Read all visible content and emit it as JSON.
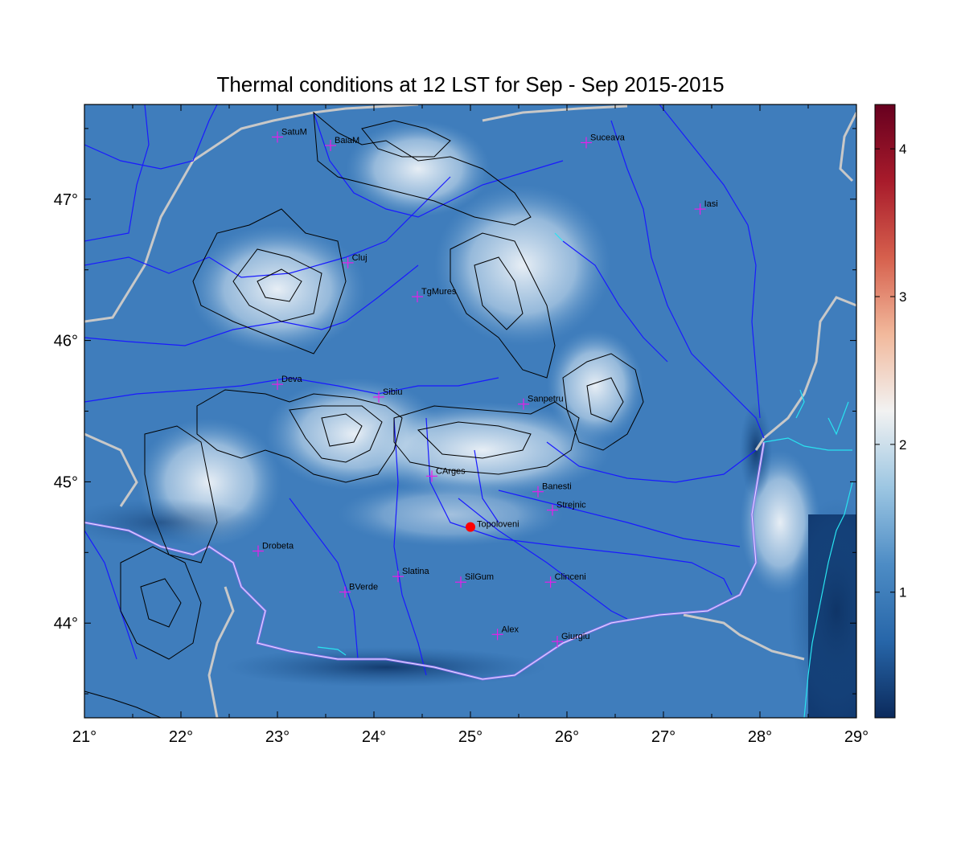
{
  "title": "Thermal conditions at 12 LST for Sep - Sep  2015-2015",
  "axes": {
    "x_ticks": [
      "21°",
      "22°",
      "23°",
      "24°",
      "25°",
      "26°",
      "27°",
      "28°",
      "29°"
    ],
    "y_ticks": [
      "47°",
      "46°",
      "45°",
      "44°"
    ],
    "lon_range": [
      21,
      29
    ],
    "lat_range": [
      43.33,
      47.67
    ]
  },
  "colorbar": {
    "ticks": [
      "1",
      "2",
      "3",
      "4"
    ],
    "range": [
      0.15,
      4.3
    ],
    "colors": [
      "#0b2a5c",
      "#2766a9",
      "#4d8cc5",
      "#9cc6e2",
      "#f2f2f2",
      "#f2b99c",
      "#d6604d",
      "#a81b2b",
      "#67001f"
    ]
  },
  "colors": {
    "rivers": "#1a1aff",
    "borders": "#c8c8c8",
    "contours": "#000000",
    "coast": "#29e3f0",
    "station_marker": "#e81ee8",
    "reference_point": "#ff0000"
  },
  "reference_point": {
    "name": "Topoloveni",
    "lon": 25.0,
    "lat": 44.68
  },
  "stations": [
    {
      "name": "SatuM",
      "lon": 23.0,
      "lat": 47.44
    },
    {
      "name": "BaiaM",
      "lon": 23.55,
      "lat": 47.38
    },
    {
      "name": "Suceava",
      "lon": 26.2,
      "lat": 47.4
    },
    {
      "name": "Iasi",
      "lon": 27.38,
      "lat": 46.93
    },
    {
      "name": "Cluj",
      "lon": 23.73,
      "lat": 46.55
    },
    {
      "name": "TgMures",
      "lon": 24.45,
      "lat": 46.31
    },
    {
      "name": "Deva",
      "lon": 23.0,
      "lat": 45.69
    },
    {
      "name": "Sibiu",
      "lon": 24.05,
      "lat": 45.6
    },
    {
      "name": "Sanpetru",
      "lon": 25.55,
      "lat": 45.55
    },
    {
      "name": "CArges",
      "lon": 24.6,
      "lat": 45.04
    },
    {
      "name": "Banesti",
      "lon": 25.7,
      "lat": 44.93
    },
    {
      "name": "Strejnic",
      "lon": 25.85,
      "lat": 44.8
    },
    {
      "name": "Drobeta",
      "lon": 22.8,
      "lat": 44.51
    },
    {
      "name": "Slatina",
      "lon": 24.25,
      "lat": 44.33
    },
    {
      "name": "SilGum",
      "lon": 24.9,
      "lat": 44.29
    },
    {
      "name": "Clinceni",
      "lon": 25.83,
      "lat": 44.29
    },
    {
      "name": "BVerde",
      "lon": 23.7,
      "lat": 44.22
    },
    {
      "name": "Alex",
      "lon": 25.28,
      "lat": 43.92
    },
    {
      "name": "Giurgiu",
      "lon": 25.9,
      "lat": 43.87
    }
  ]
}
